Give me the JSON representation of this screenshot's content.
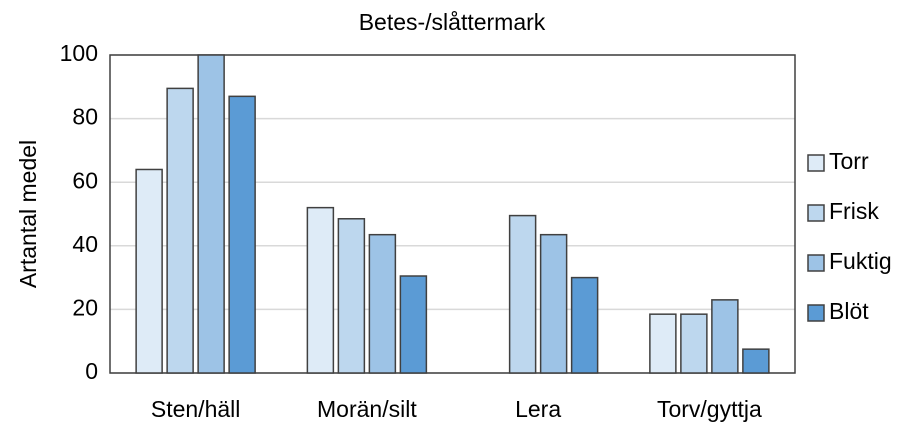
{
  "chart_data": {
    "type": "bar",
    "title": "Betes-/slåttermark",
    "y_label": "Artantal medel",
    "categories": [
      "Sten/häll",
      "Morän/silt",
      "Lera",
      "Torv/gyttja"
    ],
    "series": [
      {
        "name": "Torr",
        "color": "#deebf7",
        "values": [
          64,
          52,
          0,
          18.5
        ]
      },
      {
        "name": "Frisk",
        "color": "#bdd7ee",
        "values": [
          89.5,
          48.5,
          49.5,
          18.5
        ]
      },
      {
        "name": "Fuktig",
        "color": "#9dc3e6",
        "values": [
          100,
          43.5,
          43.5,
          23
        ]
      },
      {
        "name": "Blöt",
        "color": "#5b9bd5",
        "values": [
          87,
          30.5,
          30,
          7.5
        ]
      }
    ],
    "ylim": [
      0,
      100
    ],
    "yticks": [
      0,
      20,
      40,
      60,
      80,
      100
    ],
    "grid": true,
    "legend": "right"
  }
}
